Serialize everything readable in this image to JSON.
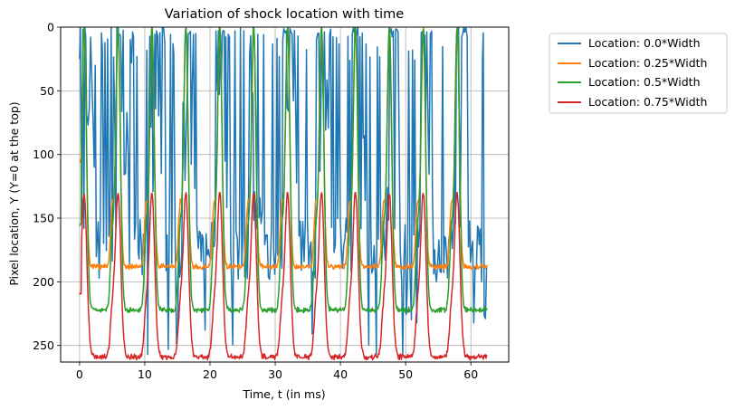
{
  "chart_data": {
    "type": "line",
    "title": "Variation of shock location with time",
    "xlabel": "Time, t (in ms)",
    "ylabel": "Pixel location, Y (Y=0 at the top)",
    "xlim": [
      -2.9,
      65.8
    ],
    "ylim": [
      0,
      263
    ],
    "y_inverted": true,
    "grid": true,
    "legend_position": "outside top-right",
    "x_ticks": [
      0,
      10,
      20,
      30,
      40,
      50,
      60
    ],
    "y_ticks": [
      0,
      50,
      100,
      150,
      200,
      250
    ],
    "period_ms": 5.2,
    "t_start": 0,
    "t_end": 62.5,
    "series": [
      {
        "name": "Location: 0.0*Width",
        "color": "#1f77b4",
        "base_value": 160,
        "min_value": 0,
        "max_value": 258,
        "notes": "highly erratic, frequent spikes to 0"
      },
      {
        "name": "Location: 0.25*Width",
        "color": "#ff7f0e",
        "plateau_value": 188,
        "peak_value": 0,
        "start_value": 105
      },
      {
        "name": "Location: 0.5*Width",
        "color": "#2ca02c",
        "plateau_value": 222,
        "peak_value": 0,
        "start_value": 155
      },
      {
        "name": "Location: 0.75*Width",
        "color": "#d62728",
        "plateau_value": 259,
        "peak_value": 130,
        "start_value": 210
      }
    ]
  }
}
